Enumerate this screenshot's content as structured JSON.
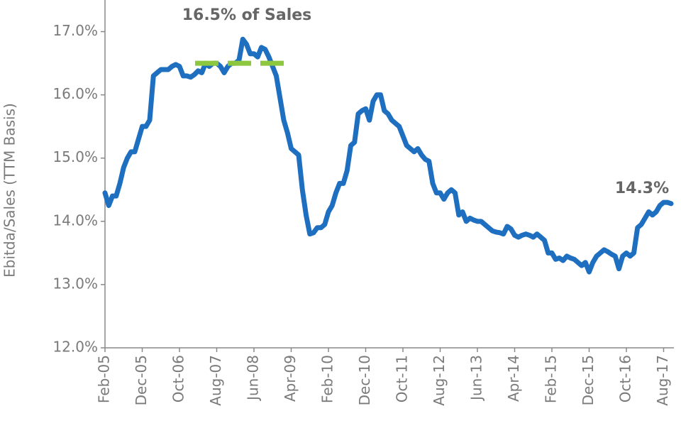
{
  "chart_data": {
    "type": "line",
    "y_label": "Ebitda/Sales (TTM Basis)",
    "annotations": [
      {
        "text": "16.5% of Sales",
        "value": 16.5
      },
      {
        "text": "14.3%"
      }
    ],
    "color": "#1f6fc0",
    "reference_color": "#8dc63f",
    "categories": [
      "Feb-05",
      null,
      null,
      null,
      null,
      null,
      null,
      null,
      null,
      null,
      "Dec-05",
      null,
      null,
      null,
      null,
      null,
      null,
      null,
      null,
      null,
      "Oct-06",
      null,
      null,
      null,
      null,
      null,
      null,
      null,
      null,
      null,
      "Aug-07",
      null,
      null,
      null,
      null,
      null,
      null,
      null,
      null,
      null,
      "Jun-08",
      null,
      null,
      null,
      null,
      null,
      null,
      null,
      null,
      null,
      "Apr-09",
      null,
      null,
      null,
      null,
      null,
      null,
      null,
      null,
      null,
      "Feb-10",
      null,
      null,
      null,
      null,
      null,
      null,
      null,
      null,
      null,
      "Dec-10",
      null,
      null,
      null,
      null,
      null,
      null,
      null,
      null,
      null,
      "Oct-11",
      null,
      null,
      null,
      null,
      null,
      null,
      null,
      null,
      null,
      "Aug-12",
      null,
      null,
      null,
      null,
      null,
      null,
      null,
      null,
      null,
      "Jun-13",
      null,
      null,
      null,
      null,
      null,
      null,
      null,
      null,
      null,
      "Apr-14",
      null,
      null,
      null,
      null,
      null,
      null,
      null,
      null,
      null,
      "Feb-15",
      null,
      null,
      null,
      null,
      null,
      null,
      null,
      null,
      null,
      "Dec-15",
      null,
      null,
      null,
      null,
      null,
      null,
      null,
      null,
      null,
      "Oct-16",
      null,
      null,
      null,
      null,
      null,
      null,
      null,
      null,
      null,
      "Aug-17",
      null,
      null
    ],
    "values": [
      14.45,
      14.25,
      14.4,
      14.4,
      14.6,
      14.85,
      15.0,
      15.1,
      15.1,
      15.3,
      15.5,
      15.5,
      15.6,
      16.3,
      16.35,
      16.4,
      16.4,
      16.4,
      16.45,
      16.48,
      16.45,
      16.3,
      16.3,
      16.28,
      16.32,
      16.38,
      16.35,
      16.5,
      16.45,
      16.5,
      16.5,
      16.45,
      16.35,
      16.45,
      16.5,
      16.5,
      16.55,
      16.88,
      16.8,
      16.65,
      16.65,
      16.6,
      16.75,
      16.72,
      16.6,
      16.45,
      16.3,
      15.95,
      15.6,
      15.4,
      15.15,
      15.1,
      15.05,
      14.5,
      14.1,
      13.8,
      13.82,
      13.9,
      13.9,
      13.95,
      14.15,
      14.25,
      14.45,
      14.6,
      14.6,
      14.8,
      15.2,
      15.25,
      15.7,
      15.75,
      15.78,
      15.6,
      15.9,
      16.0,
      16.0,
      15.75,
      15.7,
      15.6,
      15.55,
      15.5,
      15.35,
      15.2,
      15.15,
      15.1,
      15.15,
      15.05,
      14.98,
      14.95,
      14.6,
      14.45,
      14.45,
      14.35,
      14.45,
      14.5,
      14.45,
      14.1,
      14.15,
      14.0,
      14.05,
      14.02,
      14.0,
      14.0,
      13.95,
      13.9,
      13.85,
      13.83,
      13.82,
      13.8,
      13.92,
      13.88,
      13.78,
      13.75,
      13.78,
      13.8,
      13.78,
      13.75,
      13.8,
      13.75,
      13.7,
      13.5,
      13.5,
      13.4,
      13.42,
      13.38,
      13.45,
      13.42,
      13.4,
      13.35,
      13.3,
      13.35,
      13.2,
      13.35,
      13.45,
      13.5,
      13.55,
      13.52,
      13.48,
      13.45,
      13.25,
      13.45,
      13.5,
      13.45,
      13.5,
      13.9,
      13.95,
      14.05,
      14.15,
      14.1,
      14.15,
      14.25,
      14.3,
      14.3,
      14.28
    ],
    "ylim": [
      12,
      17.5
    ],
    "yticks": [
      {
        "value": 12,
        "label": "12.0%"
      },
      {
        "value": 13,
        "label": "13.0%"
      },
      {
        "value": 14,
        "label": "14.0%"
      },
      {
        "value": 15,
        "label": "15.0%"
      },
      {
        "value": 16,
        "label": "16.0%"
      },
      {
        "value": 17,
        "label": "17.0%"
      }
    ]
  }
}
